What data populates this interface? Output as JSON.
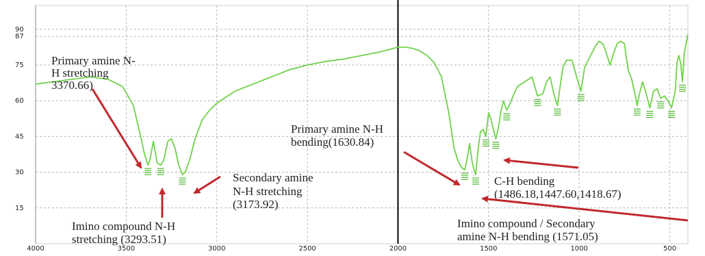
{
  "chart_data": {
    "type": "line",
    "title": "",
    "xlabel": "",
    "ylabel": "",
    "xlim": [
      4000,
      400
    ],
    "ylim": [
      0,
      100
    ],
    "x_ticks": [
      "4000",
      "3500",
      "3000",
      "2500",
      "2000",
      "1500",
      "1000",
      "500"
    ],
    "y_ticks": [
      "90",
      "87",
      "75",
      "60",
      "45",
      "30",
      "15"
    ],
    "grid": true,
    "colors": {
      "line": "#6fd24a",
      "arrow": "#c0282c",
      "frame": "#000000"
    },
    "series": [
      {
        "name": "",
        "x": [
          4000,
          3900,
          3800,
          3700,
          3600,
          3520,
          3460,
          3420,
          3400,
          3380,
          3370,
          3350,
          3330,
          3310,
          3293,
          3270,
          3250,
          3230,
          3210,
          3190,
          3174,
          3150,
          3120,
          3080,
          3040,
          3000,
          2900,
          2800,
          2700,
          2600,
          2500,
          2400,
          2300,
          2200,
          2100,
          2050,
          2000,
          1960,
          1920,
          1880,
          1840,
          1800,
          1760,
          1720,
          1690,
          1670,
          1650,
          1640,
          1631,
          1620,
          1605,
          1590,
          1580,
          1571,
          1560,
          1545,
          1530,
          1515,
          1500,
          1486,
          1470,
          1460,
          1448,
          1430,
          1418,
          1400,
          1380,
          1360,
          1340,
          1300,
          1260,
          1230,
          1200,
          1180,
          1160,
          1140,
          1120,
          1090,
          1070,
          1040,
          1010,
          990,
          970,
          950,
          930,
          910,
          890,
          870,
          850,
          830,
          810,
          790,
          770,
          750,
          730,
          710,
          690,
          680,
          670,
          650,
          630,
          610,
          590,
          570,
          550,
          530,
          510,
          490,
          470,
          460,
          450,
          440,
          430,
          420,
          410,
          400
        ],
        "y": [
          67,
          68,
          69,
          70,
          69,
          66,
          58,
          45,
          38,
          33,
          35,
          43,
          34,
          33,
          35,
          43,
          44,
          40,
          33,
          29,
          30,
          35,
          44,
          52,
          56,
          59,
          64,
          67,
          70,
          73,
          75,
          76.5,
          77.5,
          79,
          80.5,
          81.5,
          82.5,
          82.5,
          82,
          81,
          79,
          76,
          70,
          55,
          40,
          35,
          32,
          31.5,
          31,
          35,
          42,
          34,
          31,
          29,
          38,
          47,
          48,
          45,
          55,
          52,
          47,
          44,
          48,
          56,
          60,
          56,
          59,
          63,
          66,
          68,
          70,
          62,
          63,
          68,
          70,
          63,
          58,
          74,
          77,
          77,
          69,
          64,
          74,
          77,
          80,
          83,
          85,
          84,
          80,
          75,
          80,
          84,
          85,
          84,
          73,
          69,
          62,
          58,
          62,
          68,
          63,
          57,
          64,
          65,
          61,
          62,
          60,
          57,
          64,
          76,
          79,
          76,
          68,
          80,
          84,
          88
        ]
      }
    ],
    "annotations": [
      "Primary amine N-",
      "H stretching",
      "3370.66)",
      "Imino compound N-H",
      "stretching (3293.51)",
      "Secondary  amine",
      "N-H stretching",
      "(3173.92)",
      "Primary amine N-H",
      "bending(1630.84)",
      "C-H bending",
      "(1486.18,1447.60,1418.67)",
      "Imino compound / Secondary",
      "amine N-H bending (1571.05)"
    ]
  }
}
